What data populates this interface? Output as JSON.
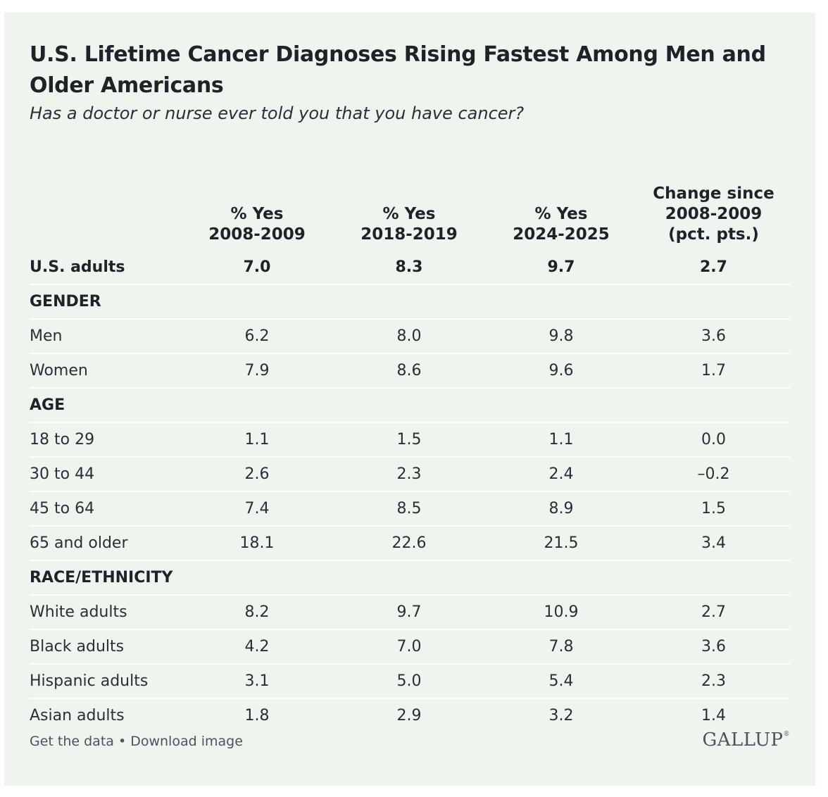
{
  "title": "U.S. Lifetime Cancer Diagnoses Rising Fastest Among Men and Older Americans",
  "subtitle": "Has a doctor or nurse ever told you that you have cancer?",
  "chart_data": {
    "type": "table",
    "columns": [
      [
        "% Yes",
        "2008-2009"
      ],
      [
        "% Yes",
        "2018-2019"
      ],
      [
        "% Yes",
        "2024-2025"
      ],
      [
        "Change since",
        "2008-2009",
        "(pct. pts.)"
      ]
    ],
    "rows": [
      {
        "label": "U.S. adults",
        "kind": "total",
        "values": [
          "7.0",
          "8.3",
          "9.7",
          "2.7"
        ]
      },
      {
        "label": "GENDER",
        "kind": "section",
        "values": []
      },
      {
        "label": "Men",
        "kind": "row",
        "values": [
          "6.2",
          "8.0",
          "9.8",
          "3.6"
        ]
      },
      {
        "label": "Women",
        "kind": "row",
        "values": [
          "7.9",
          "8.6",
          "9.6",
          "1.7"
        ]
      },
      {
        "label": "AGE",
        "kind": "section",
        "values": []
      },
      {
        "label": "18 to 29",
        "kind": "row",
        "values": [
          "1.1",
          "1.5",
          "1.1",
          "0.0"
        ]
      },
      {
        "label": "30 to 44",
        "kind": "row",
        "values": [
          "2.6",
          "2.3",
          "2.4",
          "–0.2"
        ]
      },
      {
        "label": "45 to 64",
        "kind": "row",
        "values": [
          "7.4",
          "8.5",
          "8.9",
          "1.5"
        ]
      },
      {
        "label": "65 and older",
        "kind": "row",
        "values": [
          "18.1",
          "22.6",
          "21.5",
          "3.4"
        ]
      },
      {
        "label": "RACE/ETHNICITY",
        "kind": "section",
        "values": []
      },
      {
        "label": "White adults",
        "kind": "row",
        "values": [
          "8.2",
          "9.7",
          "10.9",
          "2.7"
        ]
      },
      {
        "label": "Black adults",
        "kind": "row",
        "values": [
          "4.2",
          "7.0",
          "7.8",
          "3.6"
        ]
      },
      {
        "label": "Hispanic adults",
        "kind": "row",
        "values": [
          "3.1",
          "5.0",
          "5.4",
          "2.3"
        ]
      },
      {
        "label": "Asian adults",
        "kind": "row",
        "values": [
          "1.8",
          "2.9",
          "3.2",
          "1.4"
        ]
      }
    ]
  },
  "footer": {
    "get_data": "Get the data",
    "separator": " • ",
    "download": "Download image",
    "logo": "GALLUP",
    "logo_mark": "®"
  },
  "colors": {
    "background": "#eff5ee",
    "row_divider": "#ffffff",
    "text": "#1f2328",
    "muted": "#4d5358"
  }
}
